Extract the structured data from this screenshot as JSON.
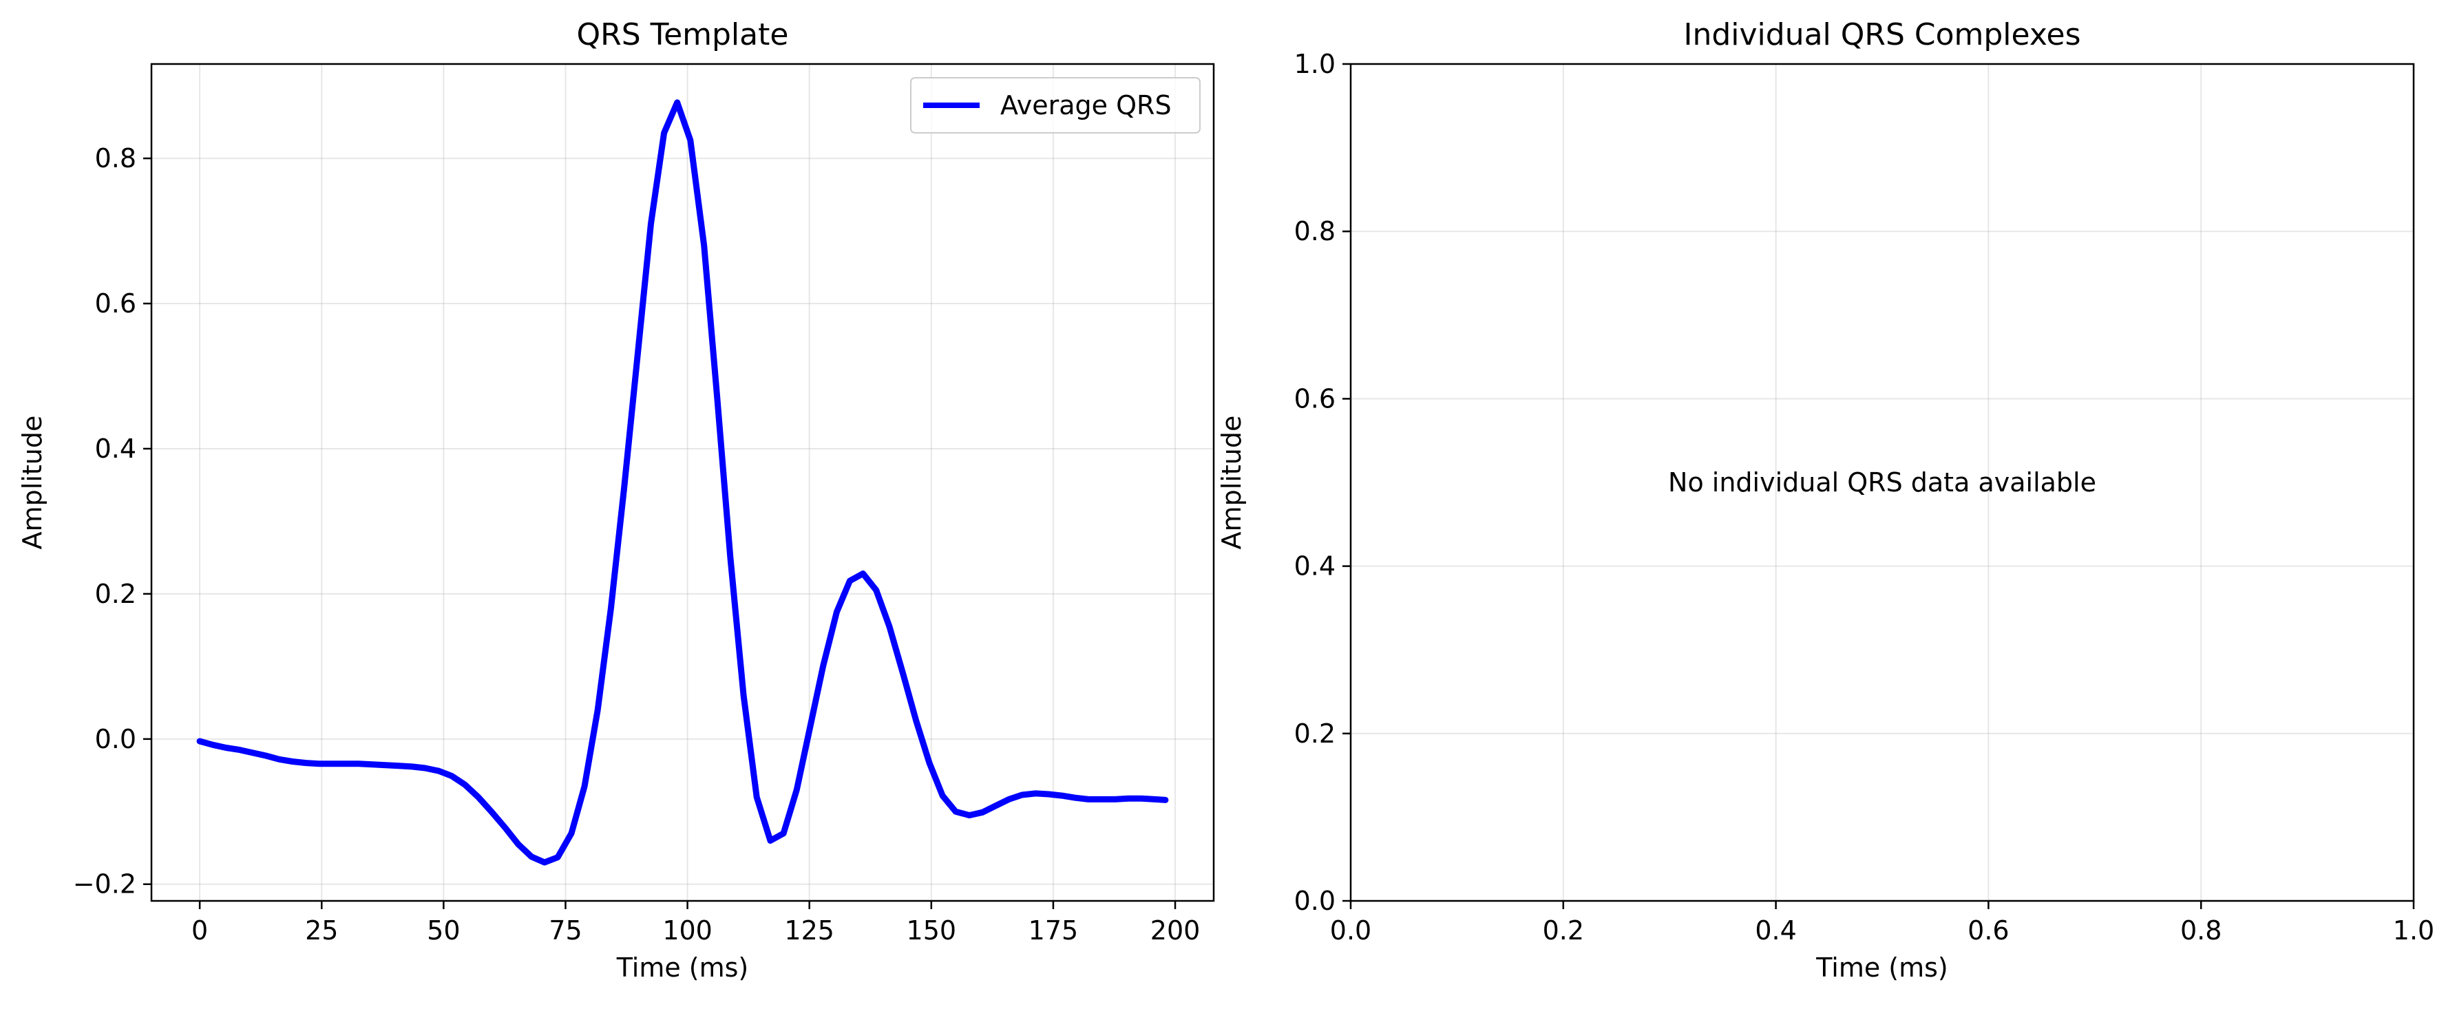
{
  "chart_data": [
    {
      "type": "line",
      "title": "QRS Template",
      "xlabel": "Time (ms)",
      "ylabel": "Amplitude",
      "xlim": [
        -9.9,
        207.9
      ],
      "ylim": [
        -0.223,
        0.93
      ],
      "xticks": [
        0,
        25,
        50,
        75,
        100,
        125,
        150,
        175,
        200
      ],
      "yticks": [
        -0.2,
        0.0,
        0.2,
        0.4,
        0.6,
        0.8
      ],
      "xtick_labels": [
        "0",
        "25",
        "50",
        "75",
        "100",
        "125",
        "150",
        "175",
        "200"
      ],
      "ytick_labels": [
        "−0.2",
        "0.0",
        "0.2",
        "0.4",
        "0.6",
        "0.8"
      ],
      "grid": true,
      "legend_position": "upper right",
      "series": [
        {
          "name": "Average QRS",
          "color": "#0000ff",
          "x": [
            0,
            2.7,
            5.4,
            8.2,
            10.9,
            13.6,
            16.3,
            19.0,
            21.8,
            24.5,
            27.2,
            29.9,
            32.6,
            35.4,
            38.1,
            40.8,
            43.5,
            46.2,
            49.0,
            51.7,
            54.4,
            57.1,
            59.8,
            62.6,
            65.3,
            68.0,
            70.7,
            73.4,
            76.2,
            78.9,
            81.6,
            84.3,
            87.0,
            89.8,
            92.5,
            95.2,
            97.9,
            100.6,
            103.4,
            106.1,
            108.8,
            111.5,
            114.2,
            117.0,
            119.7,
            122.4,
            125.1,
            127.8,
            130.6,
            133.3,
            136.0,
            138.7,
            141.4,
            144.2,
            146.9,
            149.6,
            152.3,
            155.0,
            157.8,
            160.5,
            163.2,
            165.9,
            168.6,
            171.4,
            174.1,
            176.8,
            179.5,
            182.2,
            185.0,
            187.7,
            190.4,
            193.1,
            195.8,
            198.0
          ],
          "y": [
            -0.003,
            -0.008,
            -0.012,
            -0.015,
            -0.019,
            -0.023,
            -0.028,
            -0.031,
            -0.033,
            -0.034,
            -0.034,
            -0.034,
            -0.034,
            -0.035,
            -0.036,
            -0.037,
            -0.038,
            -0.04,
            -0.044,
            -0.051,
            -0.063,
            -0.08,
            -0.1,
            -0.122,
            -0.145,
            -0.162,
            -0.17,
            -0.163,
            -0.13,
            -0.065,
            0.04,
            0.18,
            0.345,
            0.53,
            0.71,
            0.835,
            0.877,
            0.825,
            0.68,
            0.47,
            0.25,
            0.06,
            -0.08,
            -0.14,
            -0.13,
            -0.07,
            0.015,
            0.1,
            0.175,
            0.218,
            0.228,
            0.205,
            0.155,
            0.09,
            0.025,
            -0.033,
            -0.078,
            -0.1,
            -0.105,
            -0.101,
            -0.092,
            -0.083,
            -0.077,
            -0.075,
            -0.076,
            -0.078,
            -0.081,
            -0.083,
            -0.083,
            -0.083,
            -0.082,
            -0.082,
            -0.083,
            -0.084
          ]
        }
      ]
    },
    {
      "type": "line",
      "title": "Individual QRS Complexes",
      "xlabel": "Time (ms)",
      "ylabel": "Amplitude",
      "xlim": [
        0.0,
        1.0
      ],
      "ylim": [
        0.0,
        1.0
      ],
      "xticks": [
        0.0,
        0.2,
        0.4,
        0.6,
        0.8,
        1.0
      ],
      "yticks": [
        0.0,
        0.2,
        0.4,
        0.6,
        0.8,
        1.0
      ],
      "xtick_labels": [
        "0.0",
        "0.2",
        "0.4",
        "0.6",
        "0.8",
        "1.0"
      ],
      "ytick_labels": [
        "0.0",
        "0.2",
        "0.4",
        "0.6",
        "0.8",
        "1.0"
      ],
      "grid": true,
      "series": [],
      "annotation": "No individual QRS data available"
    }
  ]
}
